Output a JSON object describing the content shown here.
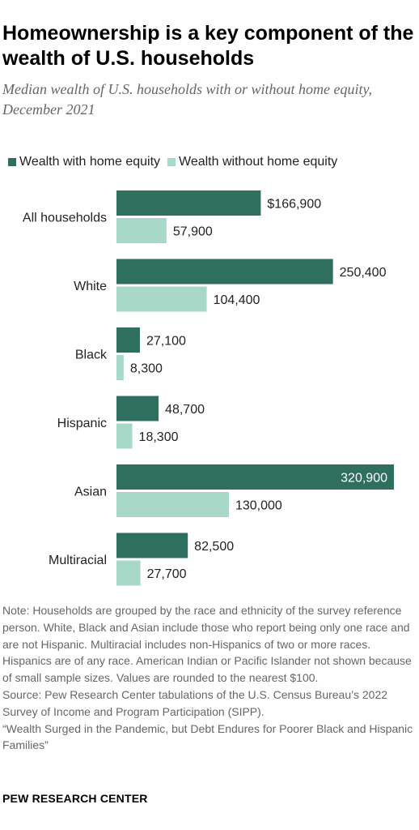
{
  "title": "Homeownership is a key component of the wealth of U.S. households",
  "subtitle": "Median wealth of U.S. households with or without home equity, December 2021",
  "colors": {
    "with_equity": "#2f6f5e",
    "without_equity": "#a8d8c8",
    "label_inside": "#ffffff"
  },
  "chart_data": {
    "type": "bar",
    "orientation": "horizontal",
    "title": "Homeownership is a key component of the wealth of U.S. households",
    "subtitle": "Median wealth of U.S. households with or without home equity, December 2021",
    "categories": [
      "All households",
      "White",
      "Black",
      "Hispanic",
      "Asian",
      "Multiracial"
    ],
    "series": [
      {
        "name": "Wealth with home equity",
        "values": [
          166900,
          250400,
          27100,
          48700,
          320900,
          82500
        ],
        "labels": [
          "$166,900",
          "250,400",
          "27,100",
          "48,700",
          "320,900",
          "82,500"
        ]
      },
      {
        "name": "Wealth without home equity",
        "values": [
          57900,
          104400,
          8300,
          18300,
          130000,
          27700
        ],
        "labels": [
          "57,900",
          "104,400",
          "8,300",
          "18,300",
          "130,000",
          "27,700"
        ]
      }
    ],
    "xlim": [
      0,
      320900
    ],
    "legend_position": "top",
    "grid": false
  },
  "note_lines": [
    "Note: Households are grouped by the race and ethnicity of the survey reference person. White, Black and Asian include those who report being only one race and are not Hispanic. Multiracial includes non-Hispanics of two or more races. Hispanics are of any race. American Indian or Pacific Islander not shown because of small sample sizes. Values are rounded to the nearest $100.",
    "Source: Pew Research Center tabulations of the U.S. Census Bureau’s 2022 Survey of Income and Program Participation (SIPP).",
    "“Wealth Surged in the Pandemic, but Debt Endures for Poorer Black and Hispanic Families”"
  ],
  "brand": "PEW RESEARCH CENTER"
}
